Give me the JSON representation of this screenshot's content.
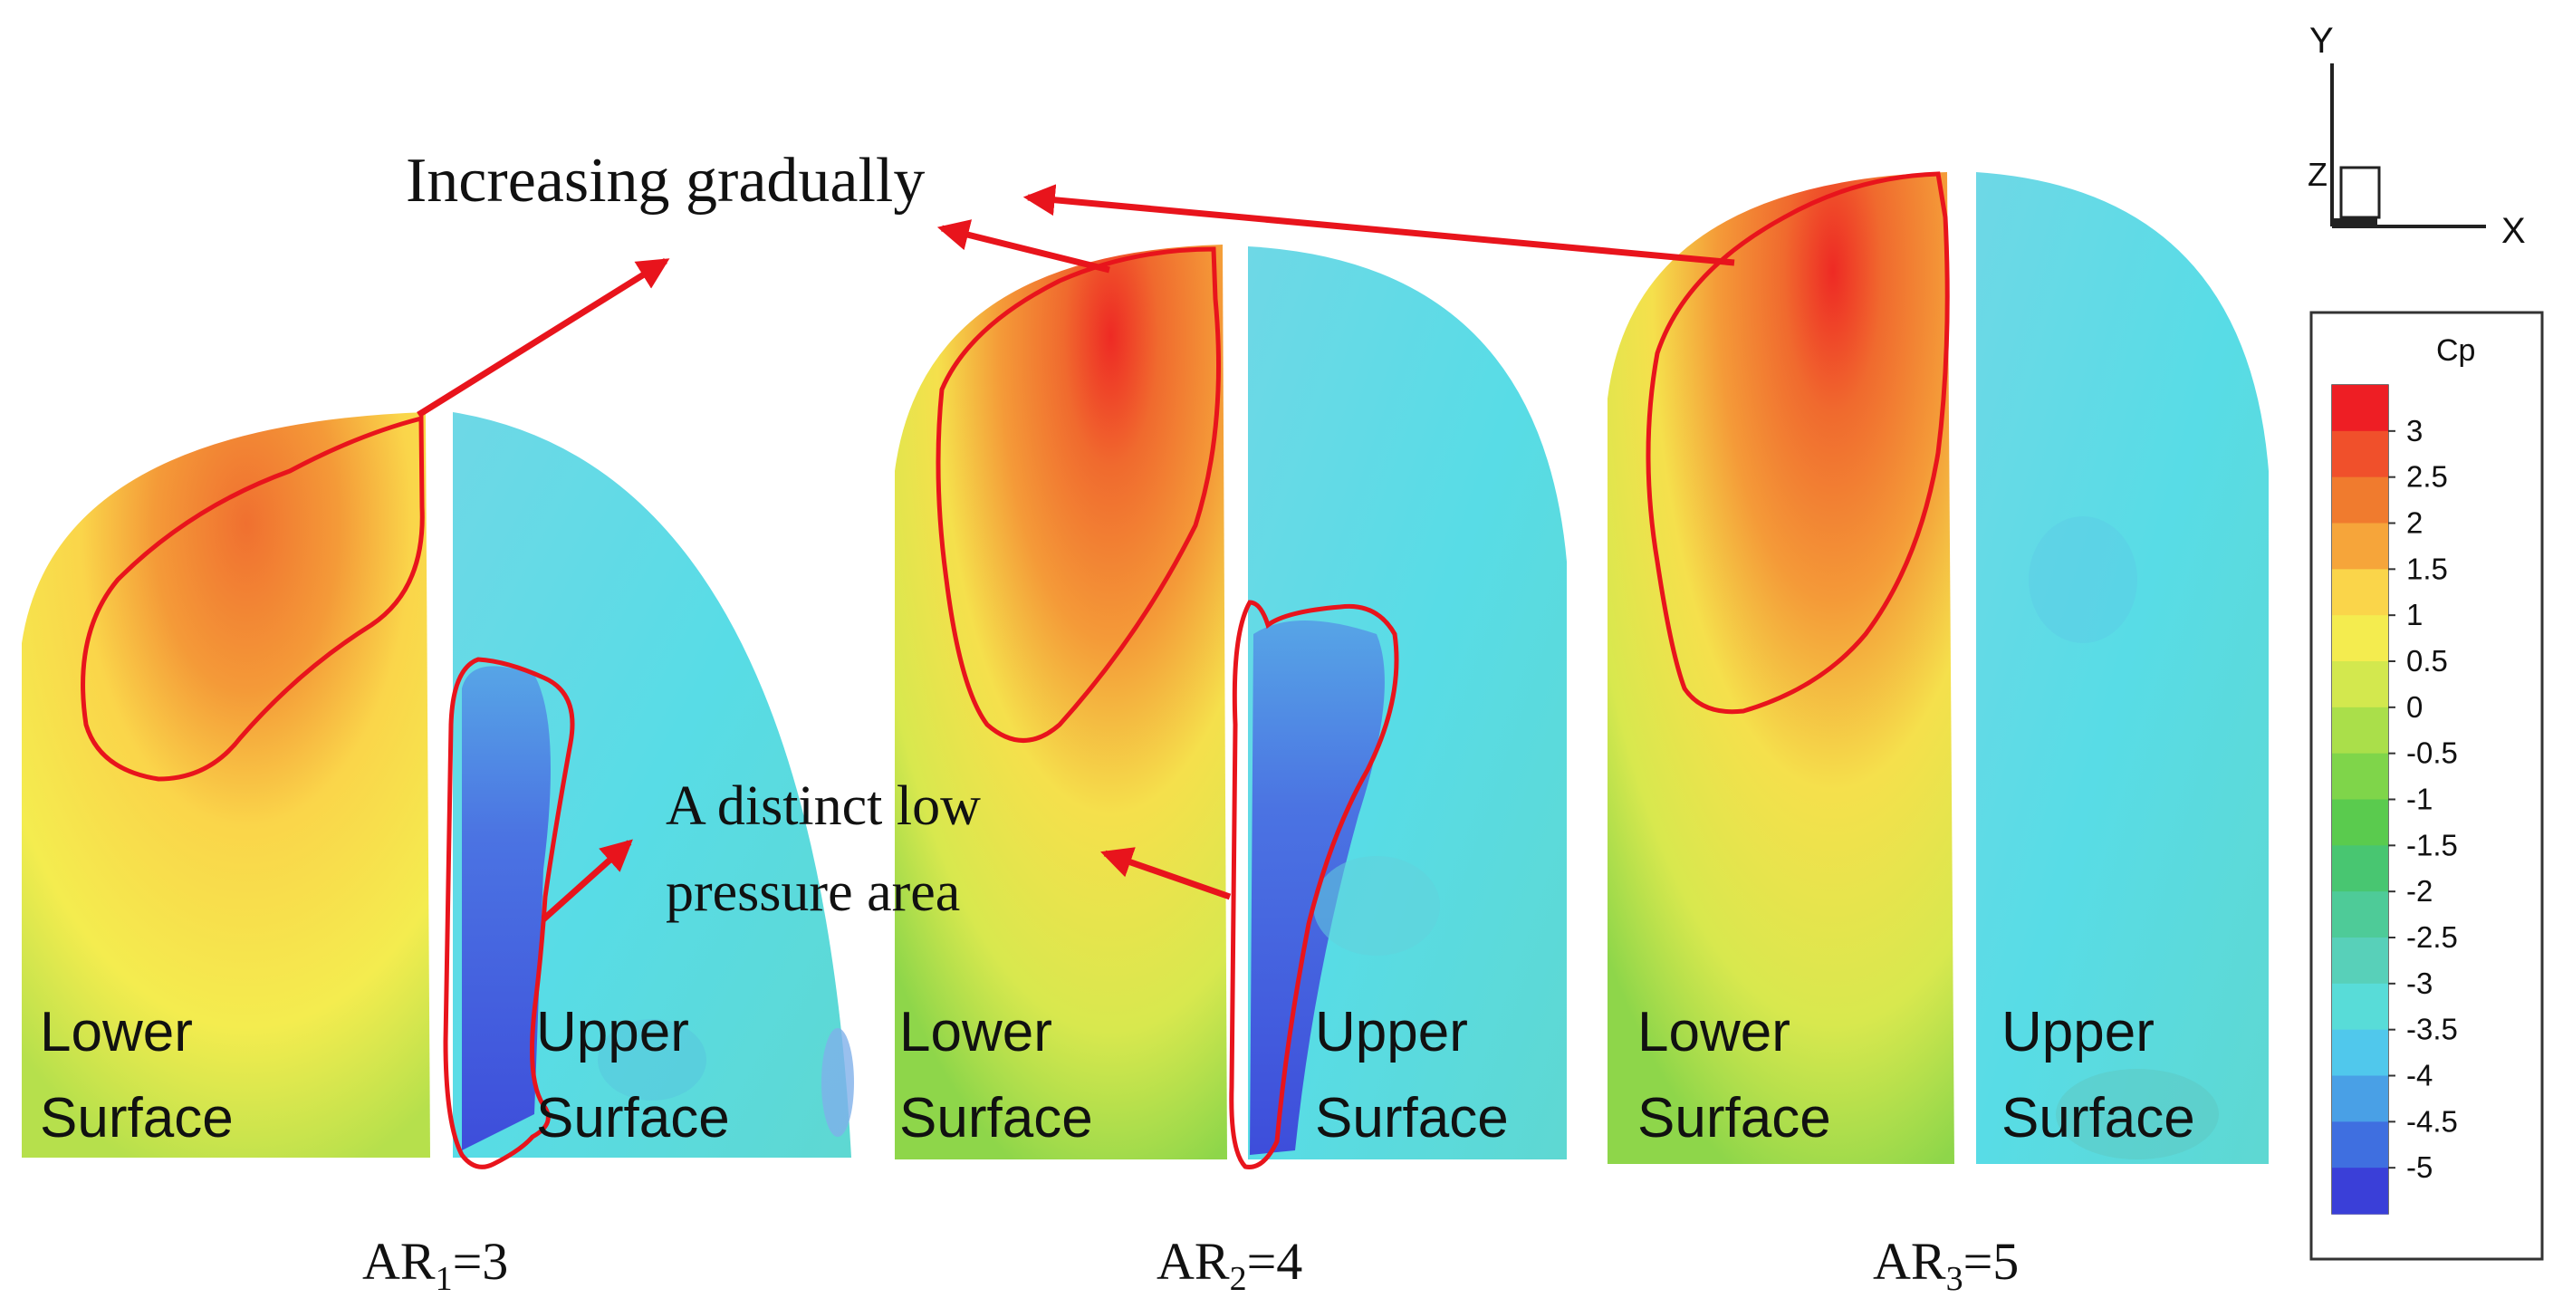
{
  "annotations": {
    "increasing": "Increasing gradually",
    "low_pressure_line1": "A distinct low",
    "low_pressure_line2": "pressure area"
  },
  "panels": [
    {
      "ar_main": "AR",
      "ar_sub": "1",
      "ar_value": "=3",
      "aspect_ratio": 3,
      "lower_line1": "Lower",
      "lower_line2": "Surface",
      "upper_line1": "Upper",
      "upper_line2": "Surface"
    },
    {
      "ar_main": "AR",
      "ar_sub": "2",
      "ar_value": "=4",
      "aspect_ratio": 4,
      "lower_line1": "Lower",
      "lower_line2": "Surface",
      "upper_line1": "Upper",
      "upper_line2": "Surface"
    },
    {
      "ar_main": "AR",
      "ar_sub": "3",
      "ar_value": "=5",
      "aspect_ratio": 5,
      "lower_line1": "Lower",
      "lower_line2": "Surface",
      "upper_line1": "Upper",
      "upper_line2": "Surface"
    }
  ],
  "axes_triad": {
    "y": "Y",
    "z": "Z",
    "x": "X"
  },
  "legend": {
    "title": "Cp",
    "ticks": [
      "3",
      "2.5",
      "2",
      "1.5",
      "1",
      "0.5",
      "0",
      "-0.5",
      "-1",
      "-1.5",
      "-2",
      "-2.5",
      "-3",
      "-3.5",
      "-4",
      "-4.5",
      "-5"
    ],
    "colors": [
      "#ee1e24",
      "#f0502b",
      "#f07b2e",
      "#f6a53a",
      "#fad54a",
      "#f4ec4f",
      "#d3e84e",
      "#aadf4a",
      "#7fd54a",
      "#5acb4e",
      "#48c671",
      "#4ecb98",
      "#58d0b9",
      "#58dcd8",
      "#50c8ec",
      "#49a0e6",
      "#3f6fe0",
      "#3a3fd8"
    ]
  },
  "colors": {
    "highlight": "#e8141c",
    "text": "#111111"
  }
}
